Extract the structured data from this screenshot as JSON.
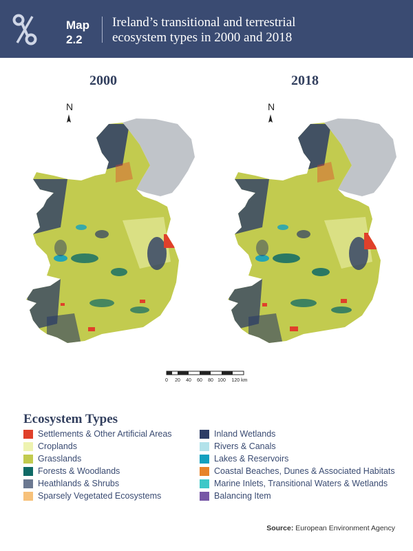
{
  "header": {
    "map_label_line1": "Map",
    "map_label_line2": "2.2",
    "title_line1": "Ireland’s transitional and terrestrial",
    "title_line2": "ecosystem types in 2000 and 2018",
    "background_color": "#3a4b72"
  },
  "maps": [
    {
      "year": "2000",
      "north_label": "N"
    },
    {
      "year": "2018",
      "north_label": "N"
    }
  ],
  "scale_bar": {
    "ticks": [
      "0",
      "20",
      "40",
      "60",
      "80",
      "100",
      "120 km"
    ]
  },
  "legend": {
    "title": "Ecosystem Types",
    "left_column": [
      {
        "label": "Settlements & Other Artificial Areas",
        "color": "#e0402a"
      },
      {
        "label": "Croplands",
        "color": "#eef3b0"
      },
      {
        "label": "Grasslands",
        "color": "#c2cb4f"
      },
      {
        "label": "Forests & Woodlands",
        "color": "#0f6a66"
      },
      {
        "label": "Heathlands & Shrubs",
        "color": "#6b7891"
      },
      {
        "label": "Sparsely Vegetated Ecosystems",
        "color": "#f7c17a"
      }
    ],
    "right_column": [
      {
        "label": "Inland Wetlands",
        "color": "#2c3c66"
      },
      {
        "label": "Rivers & Canals",
        "color": "#b2e2ea"
      },
      {
        "label": "Lakes & Reservoirs",
        "color": "#13a0bf"
      },
      {
        "label": "Coastal Beaches, Dunes & Associated Habitats",
        "color": "#e7832a"
      },
      {
        "label": "Marine Inlets, Transitional Waters & Wetlands",
        "color": "#3ec8c8"
      },
      {
        "label": "Balancing Item",
        "color": "#7757a6"
      }
    ]
  },
  "source": {
    "label": "Source:",
    "text": "European Environment Agency"
  }
}
